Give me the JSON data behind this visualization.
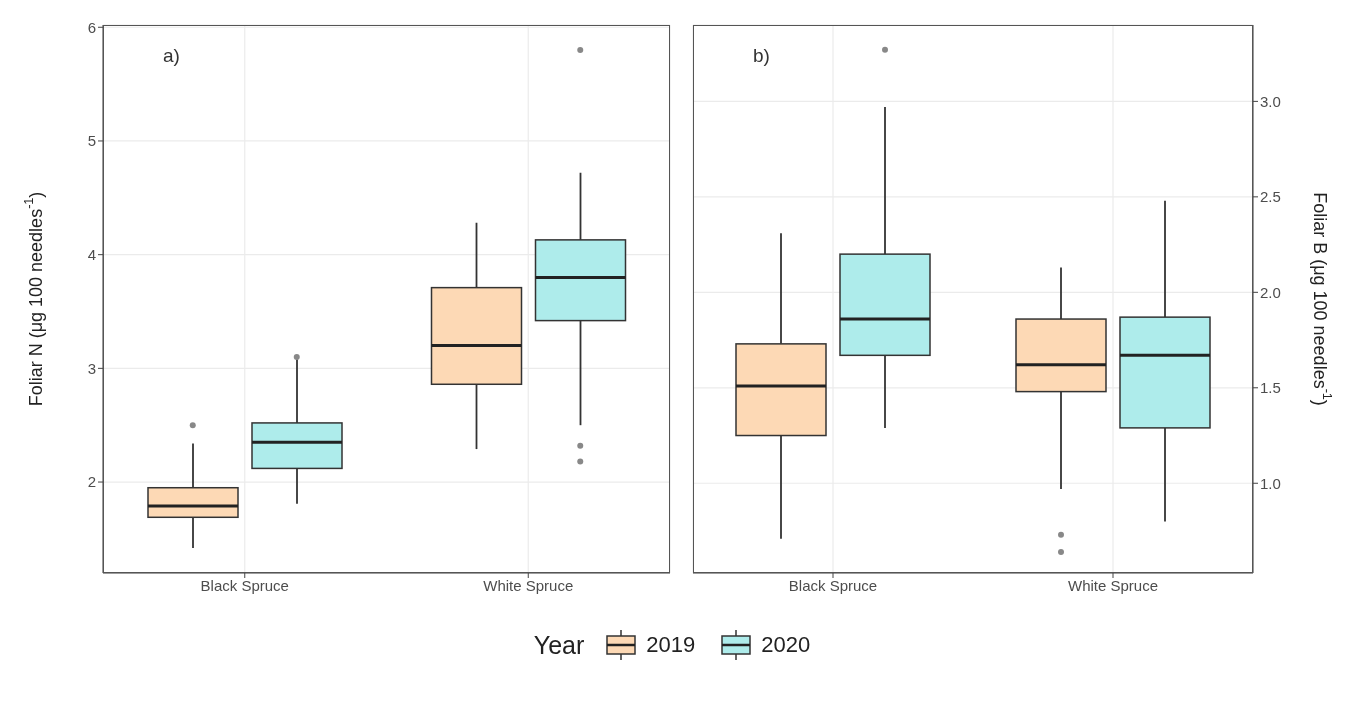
{
  "chart_data": [
    {
      "type": "box",
      "annotations": [
        "a)"
      ],
      "ylabel": "Foliar N (μg 100 needles$^{-1}$)",
      "categories": [
        "Black Spruce",
        "White Spruce"
      ],
      "ylim": [
        1.2,
        6.02
      ],
      "yticks": [
        2,
        3,
        4,
        5,
        6
      ],
      "grid": true,
      "legend": "bottom",
      "legend_title": "Year",
      "series": [
        {
          "name": "2019",
          "color": "#fdd9b5",
          "boxes": [
            {
              "low": 1.42,
              "q1": 1.69,
              "median": 1.79,
              "q3": 1.95,
              "high": 2.34,
              "outliers": [
                2.5
              ]
            },
            {
              "low": 2.29,
              "q1": 2.86,
              "median": 3.2,
              "q3": 3.71,
              "high": 4.28
            }
          ]
        },
        {
          "name": "2020",
          "color": "#aeeceb",
          "boxes": [
            {
              "low": 1.81,
              "q1": 2.12,
              "median": 2.35,
              "q3": 2.52,
              "high": 3.08,
              "outliers": [
                3.1
              ]
            },
            {
              "low": 2.5,
              "q1": 3.42,
              "median": 3.8,
              "q3": 4.13,
              "high": 4.72,
              "outliers": [
                2.32,
                2.18,
                5.8
              ]
            }
          ]
        }
      ]
    },
    {
      "type": "box",
      "annotations": [
        "b)"
      ],
      "y2label": "Foliar B (μg 100 needles$^{-1}$)",
      "categories": [
        "Black Spruce",
        "White Spruce"
      ],
      "y2lim": [
        0.53,
        3.4
      ],
      "y2ticks": [
        {
          "value": 1,
          "label": "1.0"
        },
        1.5,
        {
          "value": 2,
          "label": "2.0"
        },
        2.5,
        {
          "value": 3,
          "label": "3.0"
        }
      ],
      "grid": true,
      "series": [
        {
          "name": "2019",
          "color": "#fdd9b5",
          "axis": "y2",
          "boxes": [
            {
              "low": 0.71,
              "q1": 1.25,
              "median": 1.51,
              "q3": 1.73,
              "high": 2.31
            },
            {
              "low": 0.97,
              "q1": 1.48,
              "median": 1.62,
              "q3": 1.86,
              "high": 2.13,
              "outliers": [
                0.73,
                0.64
              ]
            }
          ]
        },
        {
          "name": "2020",
          "color": "#aeeceb",
          "axis": "y2",
          "boxes": [
            {
              "low": 1.29,
              "q1": 1.67,
              "median": 1.86,
              "q3": 2.2,
              "high": 2.97,
              "outliers": [
                3.27
              ]
            },
            {
              "low": 0.8,
              "q1": 1.29,
              "median": 1.67,
              "q3": 1.87,
              "high": 2.48
            }
          ]
        }
      ]
    }
  ]
}
